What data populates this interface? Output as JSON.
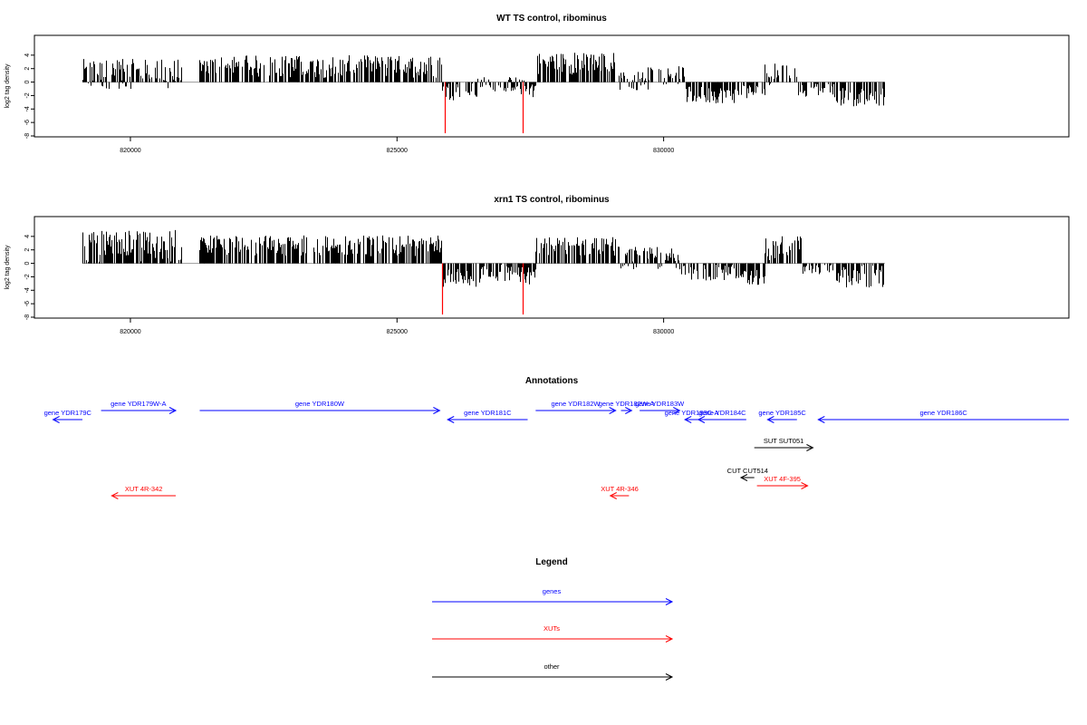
{
  "colors": {
    "gene": "#0000ff",
    "xut": "#ff0000",
    "other": "#000000",
    "highlight": "#ff0000",
    "bar": "#000000",
    "baseline": "#999999"
  },
  "chart_data": [
    {
      "type": "bar",
      "title": "WT TS control, ribominus",
      "ylabel": "log2 tag density",
      "ylim": [
        -8,
        6
      ],
      "yticks": [
        4,
        2,
        0,
        -2,
        -4,
        -6,
        -8
      ],
      "xlim": [
        818200,
        837600
      ],
      "xticks": [
        820000,
        825000,
        830000
      ],
      "data_range": [
        819100,
        834150
      ],
      "highlight_positions": [
        825900,
        827350
      ],
      "highlight_values": [
        -7.6,
        -7.6
      ],
      "region_profile": [
        [
          819100,
          820950,
          1.2,
          1.6
        ],
        [
          820950,
          821300,
          0,
          0
        ],
        [
          821300,
          825850,
          2.3,
          1.2
        ],
        [
          825850,
          826500,
          -1.3,
          1.0
        ],
        [
          826500,
          827300,
          -0.3,
          0.8
        ],
        [
          827300,
          827600,
          -1.0,
          1.0
        ],
        [
          827600,
          829150,
          2.8,
          1.2
        ],
        [
          829150,
          829700,
          0.2,
          1.0
        ],
        [
          829700,
          830400,
          1.0,
          1.0
        ],
        [
          830400,
          831400,
          -1.9,
          0.9
        ],
        [
          831400,
          831900,
          -1.3,
          0.9
        ],
        [
          831900,
          832500,
          1.2,
          1.2
        ],
        [
          832500,
          833200,
          -1.2,
          0.7
        ],
        [
          833200,
          834150,
          -2.2,
          1.0
        ]
      ]
    },
    {
      "type": "bar",
      "title": "xrn1 TS control, ribominus",
      "ylabel": "log2 tag density",
      "ylim": [
        -8,
        6
      ],
      "yticks": [
        4,
        2,
        0,
        -2,
        -4,
        -6,
        -8
      ],
      "xlim": [
        818200,
        837600
      ],
      "xticks": [
        820000,
        825000,
        830000
      ],
      "data_range": [
        819100,
        834150
      ],
      "highlight_positions": [
        825850,
        827350
      ],
      "highlight_values": [
        -7.6,
        -7.6
      ],
      "region_profile": [
        [
          819100,
          820950,
          2.6,
          1.7
        ],
        [
          820950,
          821300,
          0,
          0
        ],
        [
          821300,
          825850,
          2.6,
          1.1
        ],
        [
          825850,
          826550,
          -2.2,
          1.0
        ],
        [
          826550,
          827300,
          -1.4,
          1.0
        ],
        [
          827300,
          827600,
          -1.8,
          1.0
        ],
        [
          827600,
          829150,
          2.5,
          1.0
        ],
        [
          829150,
          830300,
          0.8,
          1.2
        ],
        [
          830300,
          831500,
          -1.3,
          0.9
        ],
        [
          831500,
          831900,
          -1.8,
          1.0
        ],
        [
          831900,
          832600,
          2.2,
          1.3
        ],
        [
          832600,
          833200,
          -0.8,
          0.7
        ],
        [
          833200,
          834150,
          -1.8,
          1.3
        ]
      ]
    }
  ],
  "annotations": {
    "title": "Annotations",
    "features": [
      {
        "label": "gene YDR179C",
        "class": "gene",
        "start": 819100,
        "end": 818550,
        "row": 1
      },
      {
        "label": "gene YDR179W-A",
        "class": "gene",
        "start": 819450,
        "end": 820850,
        "row": 0
      },
      {
        "label": "gene YDR180W",
        "class": "gene",
        "start": 821300,
        "end": 825800,
        "row": 0
      },
      {
        "label": "gene YDR181C",
        "class": "gene",
        "start": 827450,
        "end": 825950,
        "row": 1
      },
      {
        "label": "gene YDR182W",
        "class": "gene",
        "start": 827600,
        "end": 829100,
        "row": 0
      },
      {
        "label": "gene YDR182W-A",
        "class": "gene",
        "start": 829200,
        "end": 829400,
        "row": 0
      },
      {
        "label": "gene YDR183W",
        "class": "gene",
        "start": 829550,
        "end": 830300,
        "row": 0
      },
      {
        "label": "gene YDR183C-A",
        "class": "gene",
        "start": 830650,
        "end": 830400,
        "row": 1
      },
      {
        "label": "gene YDR184C",
        "class": "gene",
        "start": 831550,
        "end": 830650,
        "row": 1
      },
      {
        "label": "gene YDR185C",
        "class": "gene",
        "start": 832500,
        "end": 831950,
        "row": 1
      },
      {
        "label": "gene YDR186C",
        "class": "gene",
        "start": 837600,
        "end": 832900,
        "row": 1
      },
      {
        "label": "SUT SUT051",
        "class": "other",
        "start": 831700,
        "end": 832800,
        "row": 2
      },
      {
        "label": "CUT CUT514",
        "class": "other",
        "start": 831700,
        "end": 831450,
        "row": 3
      },
      {
        "label": "XUT 4F-395",
        "class": "xut",
        "start": 831750,
        "end": 832700,
        "row": 4
      },
      {
        "label": "XUT 4R-342",
        "class": "xut",
        "start": 820850,
        "end": 819650,
        "row": 5
      },
      {
        "label": "XUT 4R-346",
        "class": "xut",
        "start": 829350,
        "end": 829000,
        "row": 5
      }
    ]
  },
  "legend": {
    "title": "Legend",
    "items": [
      {
        "label": "genes",
        "class": "gene"
      },
      {
        "label": "XUTs",
        "class": "xut"
      },
      {
        "label": "other",
        "class": "other"
      }
    ]
  }
}
